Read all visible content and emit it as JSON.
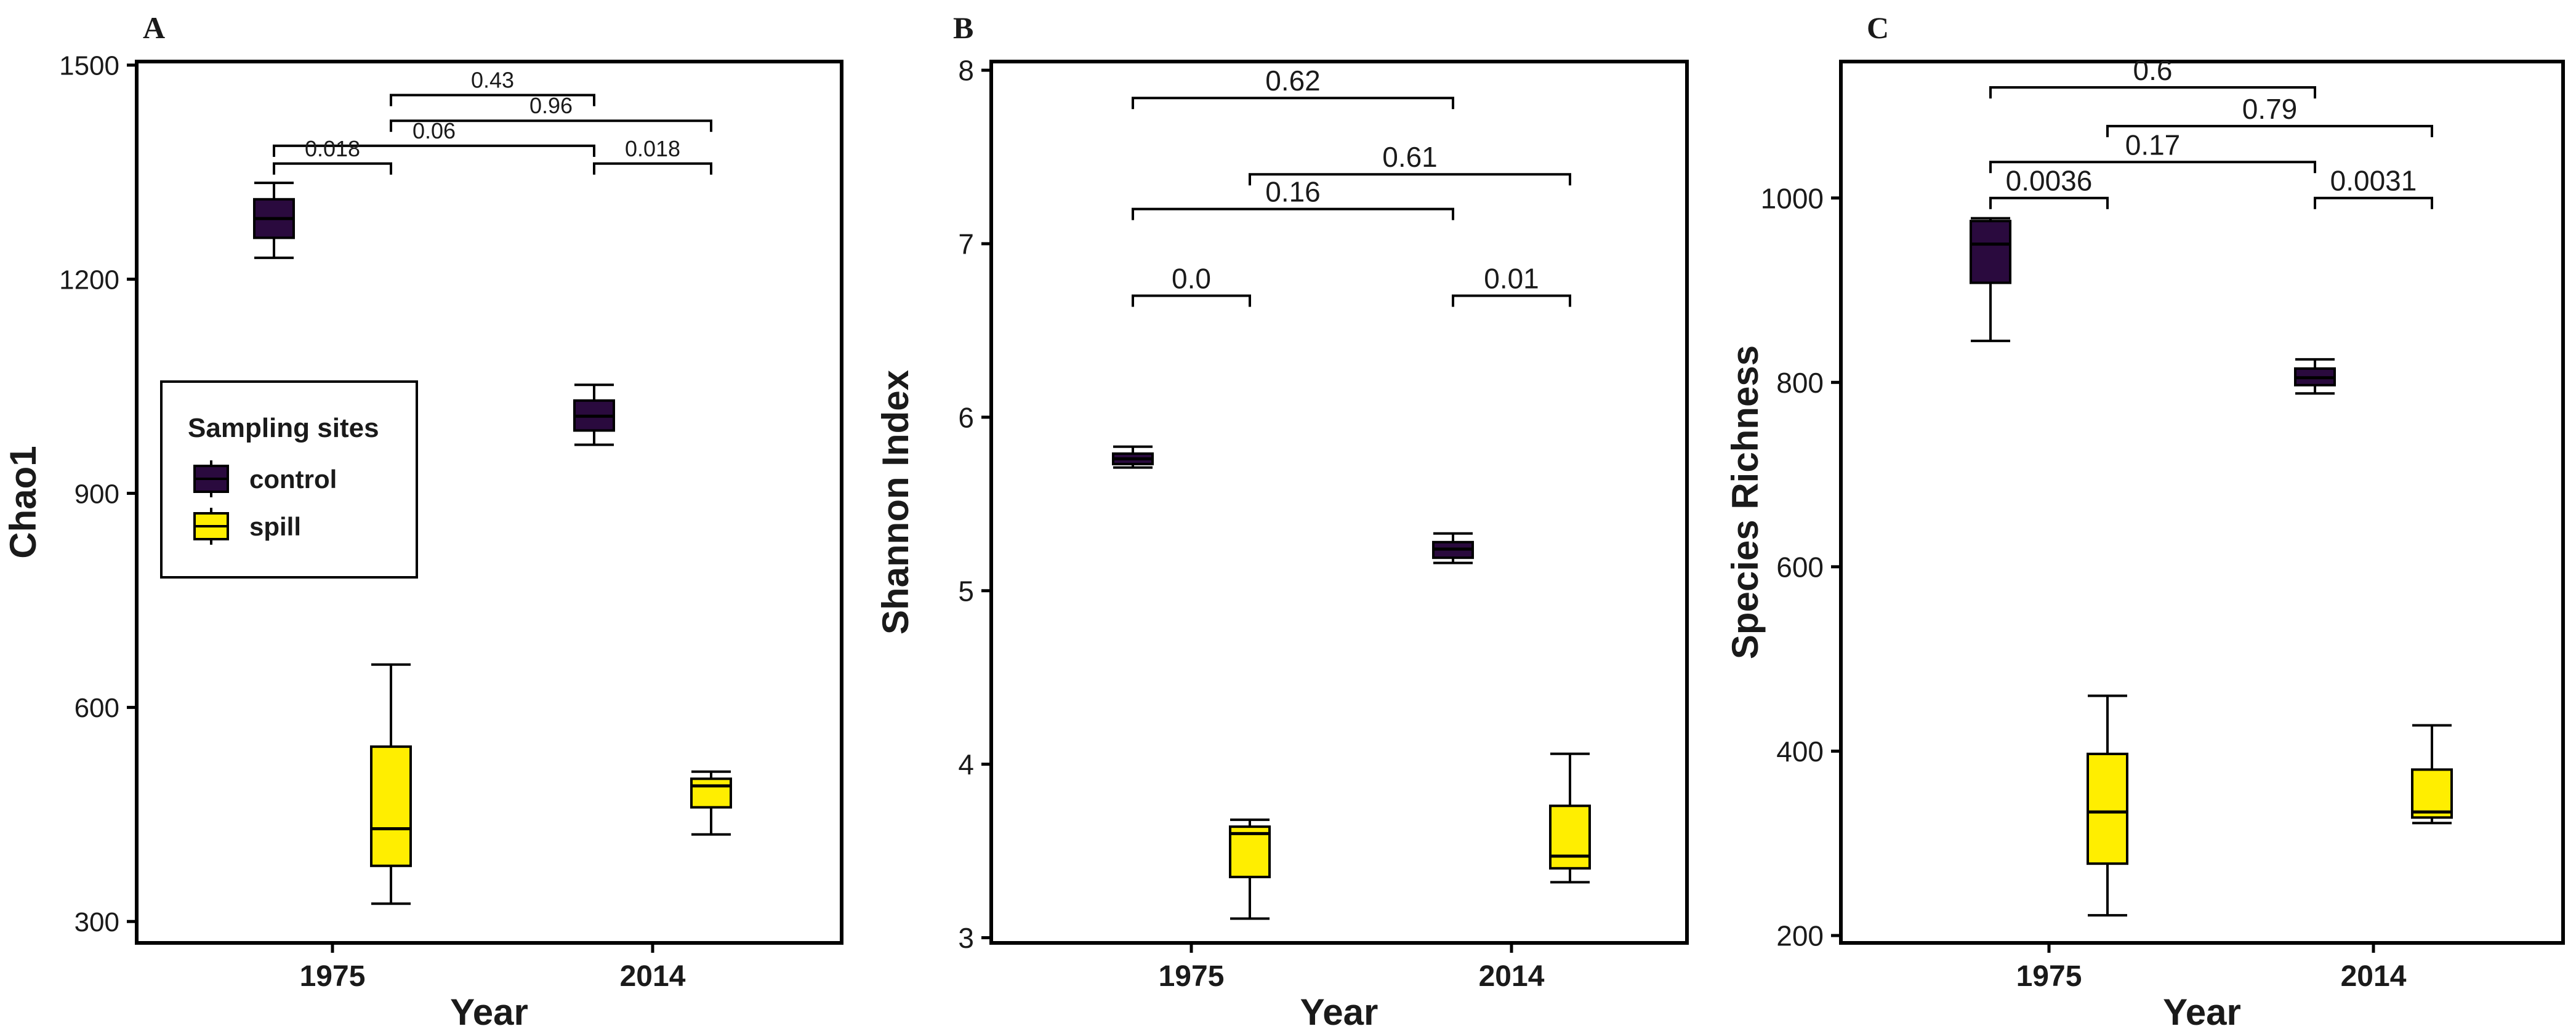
{
  "figure": {
    "group_names": [
      "control",
      "spill"
    ],
    "colors": {
      "control": "#2a0a3e",
      "spill": "#ffee00",
      "frame": "#000000",
      "text": "#1a1a1a"
    }
  },
  "legend": {
    "title": "Sampling sites",
    "items": [
      "control",
      "spill"
    ]
  },
  "chart_data": [
    {
      "type": "box",
      "panel": "A",
      "xlabel": "Year",
      "ylabel": "Chao1",
      "categories": [
        "1975",
        "2014"
      ],
      "ylim": [
        270,
        1505
      ],
      "yticks": [
        300,
        600,
        900,
        1200,
        1500
      ],
      "series": [
        {
          "name": "control",
          "boxes": [
            {
              "min": 1230,
              "q1": 1258,
              "median": 1285,
              "q3": 1312,
              "max": 1335
            },
            {
              "min": 968,
              "q1": 988,
              "median": 1008,
              "q3": 1030,
              "max": 1052
            }
          ]
        },
        {
          "name": "spill",
          "boxes": [
            {
              "min": 325,
              "q1": 378,
              "median": 430,
              "q3": 545,
              "max": 660
            },
            {
              "min": 422,
              "q1": 460,
              "median": 490,
              "q3": 500,
              "max": 510
            }
          ]
        }
      ],
      "comparisons": [
        {
          "label": "0.43",
          "from": "1975-spill",
          "to": "2014-control",
          "y": 1458
        },
        {
          "label": "0.96",
          "from": "1975-spill",
          "to": "2014-spill",
          "y": 1422
        },
        {
          "label": "0.06",
          "from": "1975-control",
          "to": "2014-control",
          "y": 1387
        },
        {
          "label": "0.018",
          "from": "1975-control",
          "to": "1975-spill",
          "y": 1362
        },
        {
          "label": "0.018",
          "from": "2014-control",
          "to": "2014-spill",
          "y": 1362
        }
      ]
    },
    {
      "type": "box",
      "panel": "B",
      "xlabel": "Year",
      "ylabel": "Shannon Index",
      "categories": [
        "1975",
        "2014"
      ],
      "ylim": [
        2.97,
        8.05
      ],
      "yticks": [
        3,
        4,
        5,
        6,
        7,
        8
      ],
      "series": [
        {
          "name": "control",
          "boxes": [
            {
              "min": 5.71,
              "q1": 5.73,
              "median": 5.76,
              "q3": 5.79,
              "max": 5.83
            },
            {
              "min": 5.16,
              "q1": 5.19,
              "median": 5.24,
              "q3": 5.28,
              "max": 5.33
            }
          ]
        },
        {
          "name": "spill",
          "boxes": [
            {
              "min": 3.11,
              "q1": 3.35,
              "median": 3.6,
              "q3": 3.64,
              "max": 3.68
            },
            {
              "min": 3.32,
              "q1": 3.4,
              "median": 3.47,
              "q3": 3.76,
              "max": 4.06
            }
          ]
        }
      ],
      "comparisons": [
        {
          "label": "0.62",
          "from": "1975-control",
          "to": "2014-control",
          "y": 7.84
        },
        {
          "label": "0.61",
          "from": "1975-spill",
          "to": "2014-spill",
          "y": 7.4
        },
        {
          "label": "0.16",
          "from": "1975-control",
          "to": "2014-control",
          "y": 7.2
        },
        {
          "label": "0.0",
          "from": "1975-control",
          "to": "1975-spill",
          "y": 6.7
        },
        {
          "label": "0.01",
          "from": "2014-control",
          "to": "2014-spill",
          "y": 6.7
        }
      ]
    },
    {
      "type": "box",
      "panel": "C",
      "xlabel": "Year",
      "ylabel": "Species Richness",
      "categories": [
        "1975",
        "2014"
      ],
      "ylim": [
        192,
        1148
      ],
      "yticks": [
        200,
        400,
        600,
        800,
        1000
      ],
      "series": [
        {
          "name": "control",
          "boxes": [
            {
              "min": 845,
              "q1": 908,
              "median": 950,
              "q3": 975,
              "max": 978
            },
            {
              "min": 788,
              "q1": 797,
              "median": 805,
              "q3": 815,
              "max": 825
            }
          ]
        },
        {
          "name": "spill",
          "boxes": [
            {
              "min": 222,
              "q1": 278,
              "median": 334,
              "q3": 397,
              "max": 460
            },
            {
              "min": 322,
              "q1": 328,
              "median": 334,
              "q3": 380,
              "max": 428
            }
          ]
        }
      ],
      "comparisons": [
        {
          "label": "0.6",
          "from": "1975-control",
          "to": "2014-control",
          "y": 1120
        },
        {
          "label": "0.79",
          "from": "1975-spill",
          "to": "2014-spill",
          "y": 1078
        },
        {
          "label": "0.17",
          "from": "1975-control",
          "to": "2014-control",
          "y": 1039
        },
        {
          "label": "0.0036",
          "from": "1975-control",
          "to": "1975-spill",
          "y": 1000
        },
        {
          "label": "0.0031",
          "from": "2014-control",
          "to": "2014-spill",
          "y": 1000
        }
      ]
    }
  ]
}
